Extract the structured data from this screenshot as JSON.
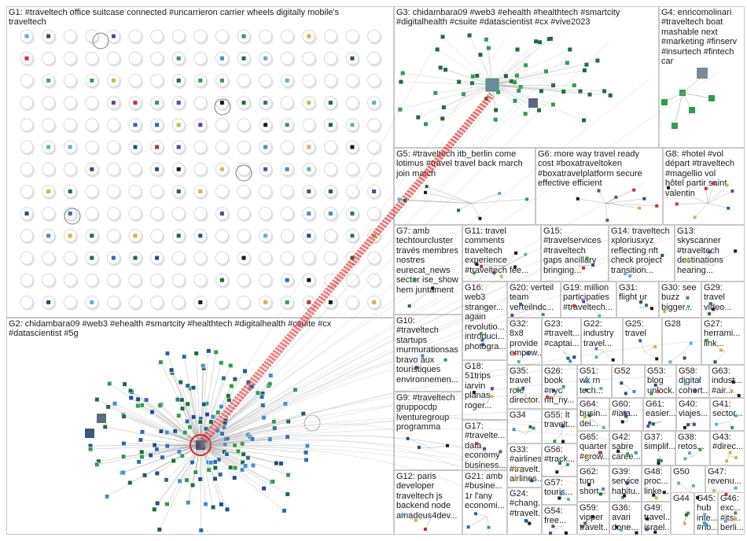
{
  "groups": [
    {
      "id": "G1",
      "label": "G1: #traveltech office suitcase connected #uncarrieron carrier wheels digitally mobile's\ntraveltech"
    },
    {
      "id": "G2",
      "label": "G2: chidambara09 #web3 #ehealth #smartcity #healthtech #digitalhealth #csuite #cx\n#datascientist #5g"
    },
    {
      "id": "G3",
      "label": "G3: chidambara09 #web3 #ehealth #healthtech #smartcity\n#digitalhealth #csuite #datascientist #cx #vive2023"
    },
    {
      "id": "G4",
      "label": "G4: enricomolinari\n#traveltech boat\nmashable next\n#marketing #finserv\n#insurtech #fintech\ncar"
    },
    {
      "id": "G5",
      "label": "G5: #traveltech itb_berlin come\nlotimus #travel travel back march\njoin match"
    },
    {
      "id": "G6",
      "label": "G6: more way travel ready\ncost #boxatraveltoken\n#boxatravelplatform secure\neffective efficient"
    },
    {
      "id": "G8",
      "label": "G8: #hotel #vol\ndépart #traveltech\n#magellio vol\nhôtel partir saint\nvalentin"
    },
    {
      "id": "G7",
      "label": "G7: amb\ntechtourcluster\ntravés membres\nnostres\neurecat_news\nsector ise_show\nhem juntament"
    },
    {
      "id": "G11",
      "label": "G11: travel\ncomments\ntraveltech\nexperience\n#traveltech fee..."
    },
    {
      "id": "G15",
      "label": "G15:\n#travelservices\n#traveltech\ngaps ancillary\nbringing..."
    },
    {
      "id": "G14",
      "label": "G14: traveltech\nxploriusxyz\nreflecting nft\ncheck project\ntransition..."
    },
    {
      "id": "G13",
      "label": "G13:\nskyscanner\n#traveltech\ndestinations\nhearing..."
    },
    {
      "id": "G16",
      "label": "G16:\nweb3\nstranger...\nagain\nrevolutio...\nintroduci...\nphotogra..."
    },
    {
      "id": "G20",
      "label": "G20: verteil\nteam\nverteilndc..."
    },
    {
      "id": "G19",
      "label": "G19: million\nparticipaties\n#traveltech..."
    },
    {
      "id": "G31",
      "label": "G31:\nflight ur"
    },
    {
      "id": "G30",
      "label": "G30: see\nbuzz\nbigger..."
    },
    {
      "id": "G29",
      "label": "G29:\ntravel\nvideo..."
    },
    {
      "id": "G10",
      "label": "G10:\n#traveltech\nstartups\nmurmurationsas\nbravo aux\ntouristiques\nenvironnemen..."
    },
    {
      "id": "G32",
      "label": "G32:\n8x8\nprovide\nempow..."
    },
    {
      "id": "G23",
      "label": "G23:\n#travelt...\n#captai..."
    },
    {
      "id": "G22",
      "label": "G22:\nindustry\ntravel..."
    },
    {
      "id": "G25",
      "label": "G25:\ntravel"
    },
    {
      "id": "G28",
      "label": "G28"
    },
    {
      "id": "G27",
      "label": "G27:\nherrami...\nlink..."
    },
    {
      "id": "G18",
      "label": "G18:\n51trips\niarvin\nplanas\nroger..."
    },
    {
      "id": "G35",
      "label": "G35:\ntravel\nrole\ndirector..."
    },
    {
      "id": "G26",
      "label": "G26:\nbook\n#nyc\nnft_ny..."
    },
    {
      "id": "G51",
      "label": "G51:\nwk rn\ntech..."
    },
    {
      "id": "G52",
      "label": "G52"
    },
    {
      "id": "G53",
      "label": "G53:\nblog\nunlock..."
    },
    {
      "id": "G58",
      "label": "G58:\ndigital\ncohort..."
    },
    {
      "id": "G63",
      "label": "G63:\nindust...\n#air..."
    },
    {
      "id": "G9",
      "label": "G9: #traveltech\ngruppocdp\nlventuregroup\nprogramma"
    },
    {
      "id": "G34",
      "label": "G34"
    },
    {
      "id": "G64",
      "label": "G64:\nbusin...\ndei..."
    },
    {
      "id": "G60",
      "label": "G60:\n#iata..."
    },
    {
      "id": "G61",
      "label": "G61:\neasier..."
    },
    {
      "id": "G40",
      "label": "G40:\nviajes..."
    },
    {
      "id": "G41",
      "label": "G41:\nsector..."
    },
    {
      "id": "G55",
      "label": "G55: lt\ntravelt..."
    },
    {
      "id": "G17",
      "label": "G17:\n#travelte...\ndata\neconomy\nbusiness..."
    },
    {
      "id": "G56",
      "label": "G56:\n#track..."
    },
    {
      "id": "G65",
      "label": "G65:\nquarter\n#grow..."
    },
    {
      "id": "G42",
      "label": "G42:\nsabre\ncaree..."
    },
    {
      "id": "G37",
      "label": "G37:\nsimplif..."
    },
    {
      "id": "G38",
      "label": "G38:\nretos..."
    },
    {
      "id": "G43",
      "label": "G43:\n#direc..."
    },
    {
      "id": "G33",
      "label": "G33:\n#airlines\n#travelt...\nairlines..."
    },
    {
      "id": "G57",
      "label": "G57:\ntouris..."
    },
    {
      "id": "G62",
      "label": "G62:\nturn\nshort..."
    },
    {
      "id": "G39",
      "label": "G39:\nservice\nhabitu..."
    },
    {
      "id": "G48",
      "label": "G48:\nproc...\nlinke..."
    },
    {
      "id": "G50",
      "label": "G50"
    },
    {
      "id": "G47",
      "label": "G47:\nrevenu..."
    },
    {
      "id": "G12",
      "label": "G12: paris\ndeveloper\ntraveltech js\nbackend node\namadeus4dev..."
    },
    {
      "id": "G21",
      "label": "G21: amb\n#busine...\n1r l'any\neconomi..."
    },
    {
      "id": "G24",
      "label": "G24:\n#chang...\n#travelt..."
    },
    {
      "id": "G54",
      "label": "G54:\nfree..."
    },
    {
      "id": "G59",
      "label": "G59:\nvipper\ntravelt..."
    },
    {
      "id": "G36",
      "label": "G36:\navari\ndone..."
    },
    {
      "id": "G49",
      "label": "G49:\ntravel...\nisrael..."
    },
    {
      "id": "G44",
      "label": "G44"
    },
    {
      "id": "G45",
      "label": "G45:\nhub\ninte...\n#no..."
    },
    {
      "id": "G46",
      "label": "G46:\nexc...\n#its...\nberli..."
    }
  ],
  "colors": {
    "border": "#c8c8c8",
    "label": "#1a1a1a",
    "edge": "#9a9a9a",
    "edge_highlight": "#e02020",
    "node_palette": [
      "#2a6cb0",
      "#3f8fd0",
      "#1f4f8a",
      "#2e9e4a",
      "#1b6d3a",
      "#c83232",
      "#e0b040",
      "#6a3fa0",
      "#1a1a1a",
      "#58b0e0"
    ],
    "node_ring": "#9a9a9a"
  }
}
